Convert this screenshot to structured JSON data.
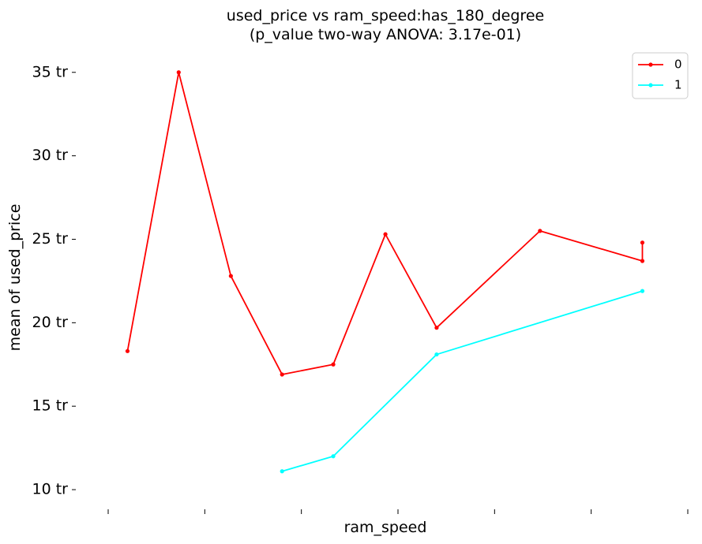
{
  "chart_data": {
    "type": "line",
    "title": "used_price vs ram_speed:has_180_degree",
    "subtitle": "(p_value two-way ANOVA: 3.17e-01)",
    "xlabel": "ram_speed",
    "ylabel": "mean of used_price",
    "y_ticks": [
      10,
      15,
      20,
      25,
      30,
      35
    ],
    "y_tick_labels": [
      "10 tr",
      "15 tr",
      "20 tr",
      "25 tr",
      "30 tr",
      "35 tr"
    ],
    "ylim": [
      9.2,
      36.5
    ],
    "xlim": [
      0,
      6
    ],
    "x_ticks": [
      0,
      1,
      2,
      3,
      4,
      5,
      6
    ],
    "grid": false,
    "legend_position": "top-right",
    "series": [
      {
        "name": "0",
        "color": "#ff0000",
        "points": [
          {
            "x": 0.2,
            "y": 18.3
          },
          {
            "x": 0.73,
            "y": 35.0
          },
          {
            "x": 1.27,
            "y": 22.8
          },
          {
            "x": 1.8,
            "y": 16.9
          },
          {
            "x": 2.33,
            "y": 17.5
          },
          {
            "x": 2.87,
            "y": 25.3
          },
          {
            "x": 3.4,
            "y": 19.7
          },
          {
            "x": 4.47,
            "y": 25.5
          },
          {
            "x": 5.53,
            "y": 23.7
          },
          {
            "x": 5.53,
            "y": 24.8
          }
        ]
      },
      {
        "name": "1",
        "color": "#00ffff",
        "points": [
          {
            "x": 1.8,
            "y": 11.1
          },
          {
            "x": 2.33,
            "y": 12.0
          },
          {
            "x": 3.4,
            "y": 18.1
          },
          {
            "x": 5.53,
            "y": 21.9
          }
        ]
      }
    ]
  }
}
